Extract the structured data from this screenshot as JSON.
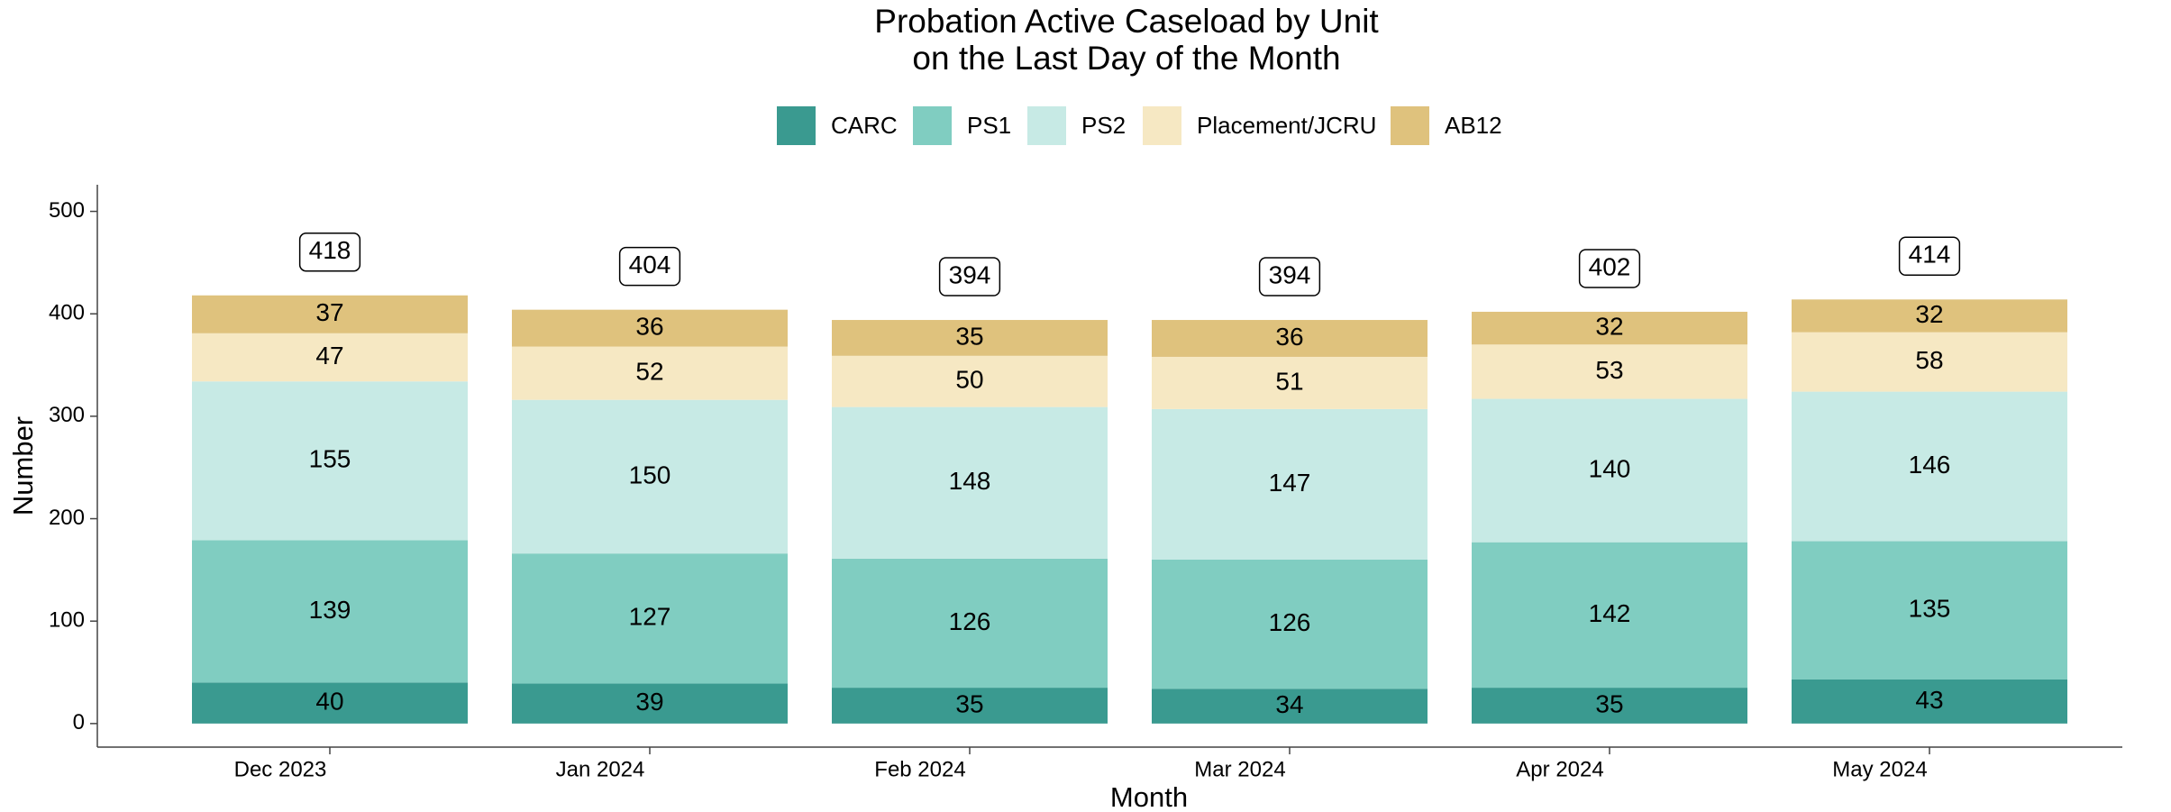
{
  "chart_data": {
    "type": "stacked_bar",
    "title": [
      "Probation Active Caseload by Unit",
      "on the Last Day of the Month"
    ],
    "x_label": "Month",
    "y_label": "Number",
    "categories": [
      "Dec 2023",
      "Jan 2024",
      "Feb 2024",
      "Mar 2024",
      "Apr 2024",
      "May 2024"
    ],
    "series": [
      {
        "name": "CARC",
        "color": "#3a9a90",
        "values": [
          40,
          39,
          35,
          34,
          35,
          43
        ]
      },
      {
        "name": "PS1",
        "color": "#80cdc1",
        "values": [
          139,
          127,
          126,
          126,
          142,
          135
        ]
      },
      {
        "name": "PS2",
        "color": "#c7eae5",
        "values": [
          155,
          150,
          148,
          147,
          140,
          146
        ]
      },
      {
        "name": "Placement/JCRU",
        "color": "#f6e8c3",
        "values": [
          47,
          52,
          50,
          51,
          53,
          58
        ]
      },
      {
        "name": "AB12",
        "color": "#dfc27d",
        "values": [
          37,
          36,
          35,
          36,
          32,
          32
        ]
      }
    ],
    "totals": [
      418,
      404,
      394,
      394,
      402,
      414
    ],
    "ylim": [
      -23,
      526
    ],
    "yticks": [
      0,
      100,
      200,
      300,
      400,
      500
    ],
    "legend": "top",
    "grid": false
  }
}
